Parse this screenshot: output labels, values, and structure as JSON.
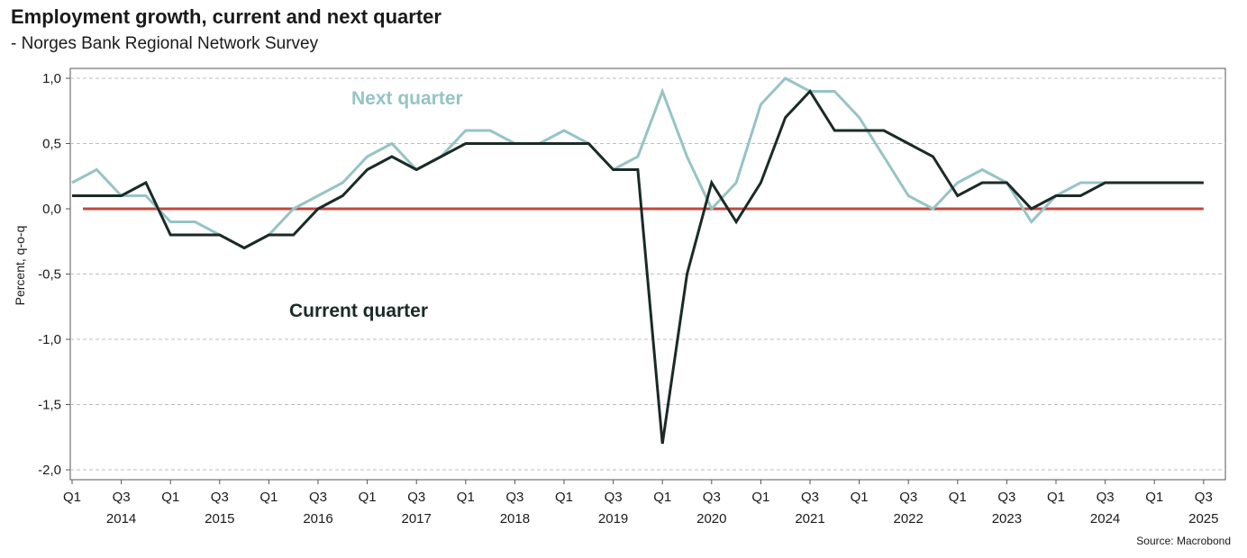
{
  "title": "Employment growth, current and next quarter",
  "subtitle": "- Norges Bank Regional Network Survey",
  "source": "Source: Macrobond",
  "chart_data": {
    "type": "line",
    "ylabel": "Percent, q-o-q",
    "ylim": [
      -2.0,
      1.0
    ],
    "yticks": [
      "1,0",
      "0,5",
      "0,0",
      "-0,5",
      "-1,0",
      "-1,5",
      "-2,0"
    ],
    "ytick_values": [
      1.0,
      0.5,
      0.0,
      -0.5,
      -1.0,
      -1.5,
      -2.0
    ],
    "x_quarter_labels": [
      "Q1",
      "Q3",
      "Q1",
      "Q3",
      "Q1",
      "Q3",
      "Q1",
      "Q3",
      "Q1",
      "Q3",
      "Q1",
      "Q3",
      "Q1",
      "Q3",
      "Q1",
      "Q3",
      "Q1",
      "Q3",
      "Q1",
      "Q3",
      "Q1",
      "Q3",
      "Q1",
      "Q3"
    ],
    "x_year_labels": [
      "2014",
      "2015",
      "2016",
      "2017",
      "2018",
      "2019",
      "2020",
      "2021",
      "2022",
      "2023",
      "2024",
      "2025"
    ],
    "x_start": "2014 Q1",
    "x_end": "2025 Q3",
    "grid": true,
    "series": [
      {
        "name": "Next quarter",
        "color": "#96c3c6",
        "x": [
          "2014 Q1",
          "2014 Q2",
          "2014 Q3",
          "2014 Q4",
          "2015 Q1",
          "2015 Q2",
          "2015 Q3",
          "2015 Q4",
          "2016 Q1",
          "2016 Q2",
          "2016 Q3",
          "2016 Q4",
          "2017 Q1",
          "2017 Q2",
          "2017 Q3",
          "2017 Q4",
          "2018 Q1",
          "2018 Q2",
          "2018 Q3",
          "2018 Q4",
          "2019 Q1",
          "2019 Q2",
          "2019 Q3",
          "2019 Q4",
          "2020 Q1",
          "2020 Q2",
          "2020 Q3",
          "2020 Q4",
          "2021 Q1",
          "2021 Q2",
          "2021 Q3",
          "2021 Q4",
          "2022 Q1",
          "2022 Q2",
          "2022 Q3",
          "2022 Q4",
          "2023 Q1",
          "2023 Q2",
          "2023 Q3",
          "2023 Q4",
          "2024 Q1",
          "2024 Q2",
          "2024 Q3",
          "2024 Q4",
          "2025 Q1",
          "2025 Q2",
          "2025 Q3"
        ],
        "values": [
          0.2,
          0.3,
          0.1,
          0.1,
          -0.1,
          -0.1,
          -0.2,
          -0.3,
          -0.2,
          0.0,
          0.1,
          0.2,
          0.4,
          0.5,
          0.3,
          0.4,
          0.6,
          0.6,
          0.5,
          0.5,
          0.6,
          0.5,
          0.3,
          0.4,
          0.9,
          0.4,
          0.0,
          0.2,
          0.8,
          1.0,
          0.9,
          0.9,
          0.7,
          0.4,
          0.1,
          0.0,
          0.2,
          0.3,
          0.2,
          -0.1,
          0.1,
          0.2,
          0.2,
          0.2,
          0.2,
          0.2,
          0.2
        ]
      },
      {
        "name": "Current quarter",
        "color": "#1b2a27",
        "x": [
          "2014 Q1",
          "2014 Q2",
          "2014 Q3",
          "2014 Q4",
          "2015 Q1",
          "2015 Q2",
          "2015 Q3",
          "2015 Q4",
          "2016 Q1",
          "2016 Q2",
          "2016 Q3",
          "2016 Q4",
          "2017 Q1",
          "2017 Q2",
          "2017 Q3",
          "2017 Q4",
          "2018 Q1",
          "2018 Q2",
          "2018 Q3",
          "2018 Q4",
          "2019 Q1",
          "2019 Q2",
          "2019 Q3",
          "2019 Q4",
          "2020 Q1",
          "2020 Q2",
          "2020 Q3",
          "2020 Q4",
          "2021 Q1",
          "2021 Q2",
          "2021 Q3",
          "2021 Q4",
          "2022 Q1",
          "2022 Q2",
          "2022 Q3",
          "2022 Q4",
          "2023 Q1",
          "2023 Q2",
          "2023 Q3",
          "2023 Q4",
          "2024 Q1",
          "2024 Q2",
          "2024 Q3",
          "2024 Q4",
          "2025 Q1",
          "2025 Q2",
          "2025 Q3"
        ],
        "values": [
          0.1,
          0.1,
          0.1,
          0.2,
          -0.2,
          -0.2,
          -0.2,
          -0.3,
          -0.2,
          -0.2,
          0.0,
          0.1,
          0.3,
          0.4,
          0.3,
          0.4,
          0.5,
          0.5,
          0.5,
          0.5,
          0.5,
          0.5,
          0.3,
          0.3,
          -1.8,
          -0.5,
          0.2,
          -0.1,
          0.2,
          0.7,
          0.9,
          0.6,
          0.6,
          0.6,
          0.5,
          0.4,
          0.1,
          0.2,
          0.2,
          0.0,
          0.1,
          0.1,
          0.2,
          0.2,
          0.2,
          0.2,
          0.2
        ]
      }
    ],
    "reference_line": {
      "y": 0.0,
      "color": "#c0473d"
    }
  }
}
